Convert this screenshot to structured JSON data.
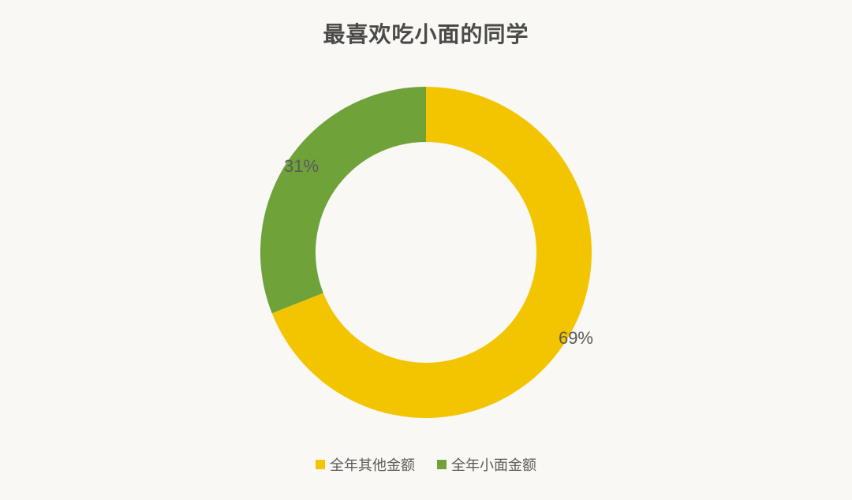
{
  "chart": {
    "type": "donut",
    "title": "最喜欢吃小面的同学",
    "title_fontsize": 28,
    "title_color": "#4a4a4a",
    "background_color": "#faf8f5",
    "outer_radius": 210,
    "inner_radius": 140,
    "start_angle_deg": 0,
    "slices": [
      {
        "label": "全年其他金额",
        "value": 69,
        "percent_text": "69%",
        "color": "#f3c500"
      },
      {
        "label": "全年小面金额",
        "value": 31,
        "percent_text": "31%",
        "color": "#6fa33a"
      }
    ],
    "data_label_fontsize": 22,
    "data_label_color": "#5a5a5a",
    "legend": {
      "position": "bottom",
      "swatch_size": 12,
      "label_fontsize": 18,
      "label_color": "#5a5a5a",
      "items": [
        {
          "label": "全年其他金额",
          "color": "#f3c500"
        },
        {
          "label": "全年小面金额",
          "color": "#6fa33a"
        }
      ]
    }
  }
}
